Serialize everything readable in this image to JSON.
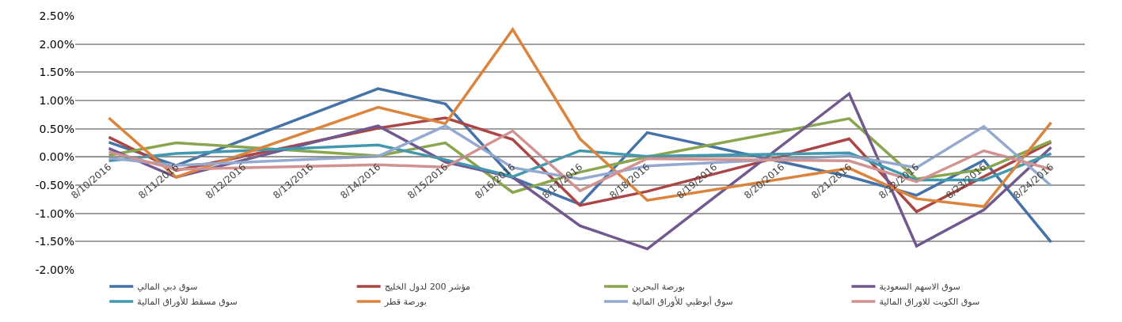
{
  "chart_data": {
    "type": "line",
    "x": [
      "2016-08-10",
      "2016-08-11",
      "2016-08-14",
      "2016-08-15",
      "2016-08-16",
      "2016-08-17",
      "2016-08-18",
      "2016-08-21",
      "2016-08-22",
      "2016-08-23",
      "2016-08-24"
    ],
    "xlim": [
      "2016-08-09T12:00",
      "2016-08-24T12:00"
    ],
    "xticks": [
      {
        "value": "2016-08-10",
        "label": "8/10/2016"
      },
      {
        "value": "2016-08-11",
        "label": "8/11/2016"
      },
      {
        "value": "2016-08-12",
        "label": "8/12/2016"
      },
      {
        "value": "2016-08-13",
        "label": "8/13/2016"
      },
      {
        "value": "2016-08-14",
        "label": "8/14/2016"
      },
      {
        "value": "2016-08-15",
        "label": "8/15/2016"
      },
      {
        "value": "2016-08-16",
        "label": "8/16/2016"
      },
      {
        "value": "2016-08-17",
        "label": "8/17/2016"
      },
      {
        "value": "2016-08-18",
        "label": "8/18/2016"
      },
      {
        "value": "2016-08-19",
        "label": "8/19/2016"
      },
      {
        "value": "2016-08-20",
        "label": "8/20/2016"
      },
      {
        "value": "2016-08-21",
        "label": "8/21/2016"
      },
      {
        "value": "2016-08-22",
        "label": "8/22/2016"
      },
      {
        "value": "2016-08-23",
        "label": "8/23/2016"
      },
      {
        "value": "2016-08-24",
        "label": "8/24/2016"
      }
    ],
    "ylim": [
      -2.0,
      2.5
    ],
    "yticks": [
      {
        "value": -2.0,
        "label": "-2.00%"
      },
      {
        "value": -1.5,
        "label": "-1.50%"
      },
      {
        "value": -1.0,
        "label": "-1.00%"
      },
      {
        "value": -0.5,
        "label": "-0.50%"
      },
      {
        "value": 0,
        "label": "0.00%"
      },
      {
        "value": 0.5,
        "label": "0.50%"
      },
      {
        "value": 1.0,
        "label": "1.00%"
      },
      {
        "value": 1.5,
        "label": "1.50%"
      },
      {
        "value": 2.0,
        "label": "2.00%"
      },
      {
        "value": 2.5,
        "label": "2.50%"
      }
    ],
    "grid": "y",
    "legend": "bottom",
    "marker": "none",
    "line_style": "solid",
    "series": [
      {
        "name": "سوق دبي المالي",
        "color": "#4572a7",
        "values": [
          0.26,
          -0.15,
          1.21,
          0.94,
          -0.37,
          -0.84,
          0.43,
          -0.35,
          -0.68,
          -0.06,
          -1.51
        ]
      },
      {
        "name": "مؤشر 200 لدول الخليج",
        "color": "#aa4643",
        "values": [
          0.35,
          -0.24,
          0.51,
          0.69,
          0.31,
          -0.86,
          -0.61,
          0.32,
          -0.97,
          -0.35,
          0.26
        ]
      },
      {
        "name": "بورصة البحرين",
        "color": "#89a54e",
        "values": [
          0.03,
          0.25,
          0.02,
          0.25,
          -0.63,
          -0.27,
          0.0,
          0.68,
          -0.39,
          -0.22,
          0.28
        ]
      },
      {
        "name": "سوق الاسهم السعودية",
        "color": "#71588f",
        "values": [
          0.15,
          -0.36,
          0.55,
          -0.09,
          -0.36,
          -1.22,
          -1.63,
          1.12,
          -1.58,
          -0.94,
          0.17
        ]
      },
      {
        "name": "سوق مسقط للأوراق المالية",
        "color": "#4198af",
        "values": [
          -0.07,
          0.06,
          0.21,
          -0.05,
          -0.35,
          0.11,
          0.01,
          0.07,
          -0.41,
          -0.41,
          0.06
        ]
      },
      {
        "name": "بورصة قطر",
        "color": "#db843d",
        "values": [
          0.69,
          -0.36,
          0.88,
          0.59,
          2.26,
          0.32,
          -0.77,
          -0.2,
          -0.74,
          -0.88,
          0.61
        ]
      },
      {
        "name": "سوق أبوظبي للأوراق المالية",
        "color": "#93a9cf",
        "values": [
          -0.02,
          -0.15,
          0.01,
          0.55,
          -0.19,
          -0.39,
          -0.16,
          0.02,
          -0.19,
          0.54,
          -0.51
        ]
      },
      {
        "name": "سوق الكويت للاوراق المالية",
        "color": "#d19392",
        "values": [
          0.09,
          -0.22,
          -0.14,
          -0.18,
          0.46,
          -0.6,
          -0.03,
          -0.07,
          -0.44,
          0.11,
          -0.22
        ]
      }
    ]
  }
}
